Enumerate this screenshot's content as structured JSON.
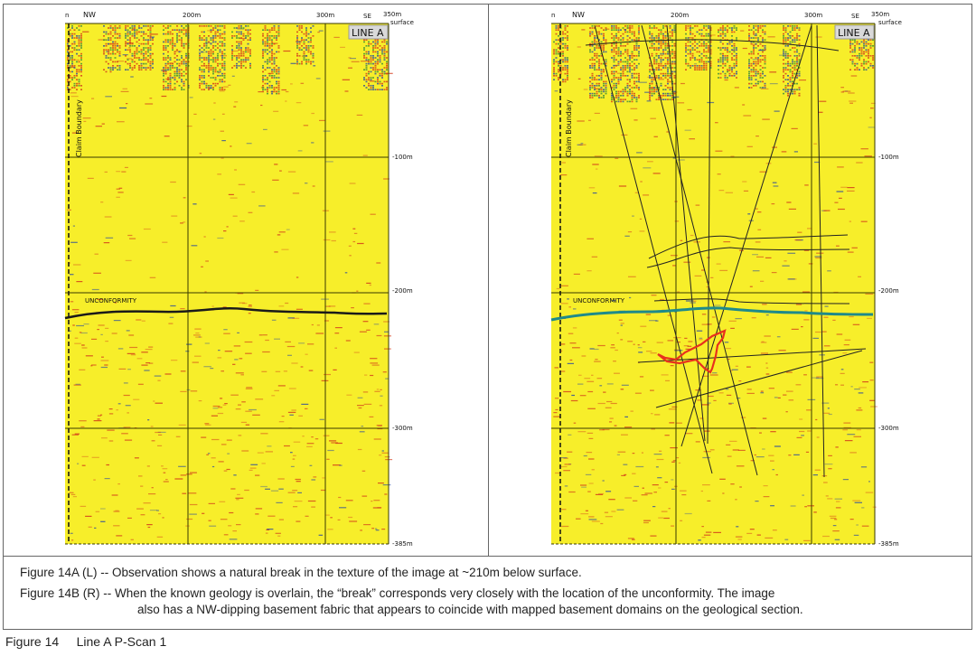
{
  "panels": [
    {
      "id": "left",
      "line_label": "LINE A",
      "top_labels": {
        "n": "n",
        "nw": "NW",
        "m200": "200m",
        "m300": "300m",
        "se": "SE",
        "m350": "350m",
        "surface": "surface"
      },
      "depth_labels": [
        "-100m",
        "-200m",
        "-300m",
        "-385m"
      ],
      "claim_boundary": "Claim Boundary",
      "unconformity": "UNCONFORMITY",
      "unconformity_color": "#1a1a1a"
    },
    {
      "id": "right",
      "line_label": "LINE A",
      "top_labels": {
        "n": "n",
        "nw": "NW",
        "m200": "200m",
        "m300": "300m",
        "se": "SE",
        "m350": "350m",
        "surface": "surface"
      },
      "depth_labels": [
        "-100m",
        "-200m",
        "-300m",
        "-385m"
      ],
      "claim_boundary": "Claim Boundary",
      "unconformity": "UNCONFORMITY",
      "unconformity_color": "#1e8a8a",
      "anomaly_color": "#e8301e"
    }
  ],
  "colors": {
    "background": "#f7ee2a",
    "grid": "#3a3a00",
    "noise_red": "#d23a1a",
    "noise_blue": "#2a4aa0"
  },
  "captions": {
    "a": "Figure 14A (L) -- Observation shows a natural break in the texture of the image at ~210m below surface.",
    "b_1": "Figure 14B (R) -- When the known geology is overlain, the “break” corresponds very closely with the location of the unconformity.  The image",
    "b_2": "also has a NW-dipping basement fabric that appears to coincide with mapped basement domains on the geological section."
  },
  "footer": {
    "figure": "Figure 14",
    "title": "Line A P-Scan 1"
  }
}
